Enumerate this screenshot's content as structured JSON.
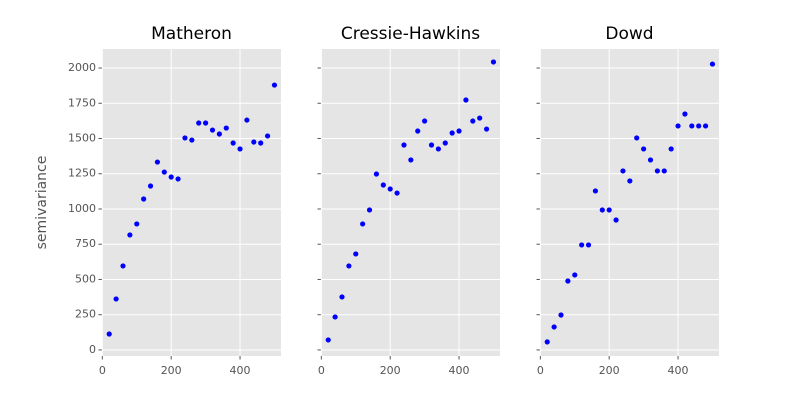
{
  "chart_data": [
    {
      "type": "scatter",
      "title": "Matheron",
      "ylabel": "semivariance",
      "color": "#0000ff",
      "x": [
        20,
        40,
        60,
        80,
        100,
        120,
        140,
        160,
        180,
        200,
        220,
        240,
        260,
        280,
        300,
        320,
        340,
        360,
        380,
        400,
        420,
        440,
        460,
        480,
        500
      ],
      "y": [
        113,
        362,
        596,
        816,
        894,
        1071,
        1163,
        1333,
        1262,
        1227,
        1213,
        1504,
        1489,
        1610,
        1610,
        1560,
        1532,
        1574,
        1468,
        1426,
        1631,
        1475,
        1468,
        1518,
        1879
      ],
      "xlim": [
        -1,
        519
      ],
      "xticks": [
        0,
        200,
        400
      ],
      "ylim": [
        -43,
        2135
      ],
      "yticks": [
        0,
        250,
        500,
        750,
        1000,
        1250,
        1500,
        1750,
        2000
      ]
    },
    {
      "type": "scatter",
      "title": "Cressie-Hawkins",
      "color": "#0000ff",
      "x": [
        20,
        40,
        60,
        80,
        100,
        120,
        140,
        160,
        180,
        200,
        220,
        240,
        260,
        280,
        300,
        320,
        340,
        360,
        380,
        400,
        420,
        440,
        460,
        480,
        500
      ],
      "y": [
        71,
        234,
        376,
        596,
        681,
        894,
        993,
        1248,
        1170,
        1142,
        1113,
        1454,
        1348,
        1553,
        1624,
        1454,
        1426,
        1468,
        1539,
        1553,
        1773,
        1624,
        1645,
        1567,
        2043
      ],
      "xlim": [
        -1,
        519
      ],
      "xticks": [
        0,
        200,
        400
      ]
    },
    {
      "type": "scatter",
      "title": "Dowd",
      "color": "#0000ff",
      "x": [
        20,
        40,
        60,
        80,
        100,
        120,
        140,
        160,
        180,
        200,
        220,
        240,
        260,
        280,
        300,
        320,
        340,
        360,
        380,
        400,
        420,
        440,
        460,
        480,
        500
      ],
      "y": [
        57,
        163,
        248,
        489,
        532,
        745,
        745,
        1128,
        993,
        993,
        922,
        1270,
        1199,
        1504,
        1426,
        1348,
        1270,
        1270,
        1426,
        1589,
        1674,
        1589,
        1589,
        1589,
        2028
      ],
      "xlim": [
        -1,
        519
      ],
      "xticks": [
        0,
        200,
        400
      ]
    }
  ]
}
